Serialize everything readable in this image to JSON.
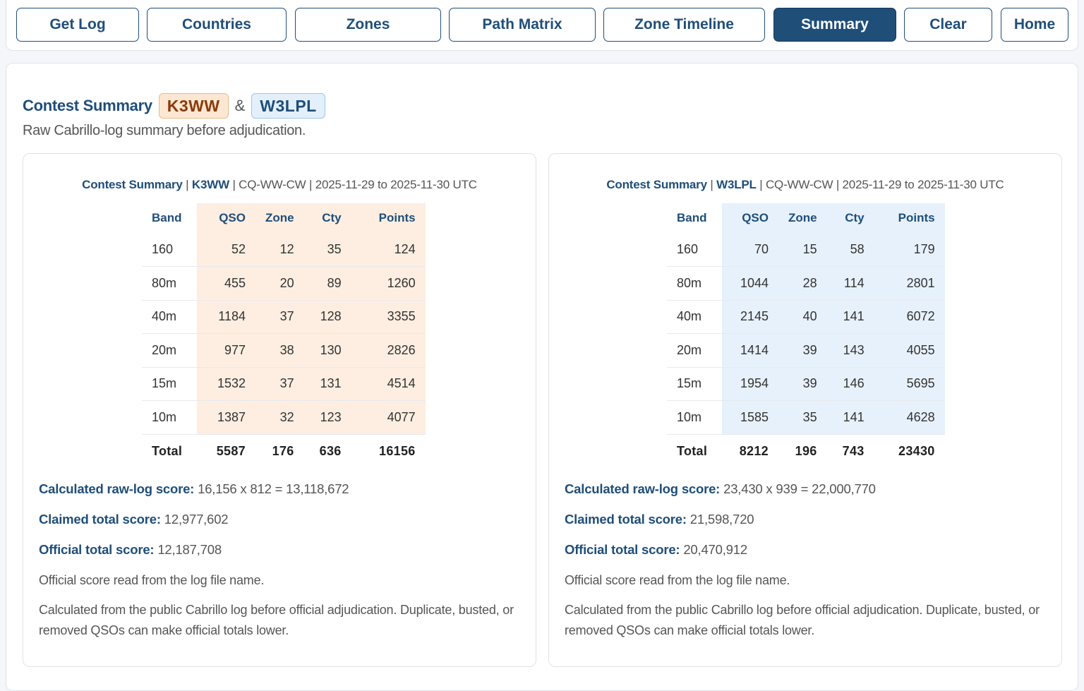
{
  "toolbar": {
    "buttons": [
      "Get Log",
      "Countries",
      "Zones",
      "Path Matrix",
      "Zone Timeline",
      "Summary",
      "Clear",
      "Home"
    ],
    "active": "Summary"
  },
  "header": {
    "title": "Contest Summary",
    "call_a": "K3WW",
    "amp": "&",
    "call_b": "W3LPL",
    "subtitle": "Raw Cabrillo-log summary before adjudication."
  },
  "colors": {
    "accent": "#1f4e79",
    "call_a_bg": "#fde7d3",
    "call_b_bg": "#e3f0fc"
  },
  "columns": [
    "Band",
    "QSO",
    "Zone",
    "Cty",
    "Points"
  ],
  "panels": [
    {
      "head_label": "Contest Summary",
      "call": "K3WW",
      "head_rest": " | CQ-WW-CW | 2025-11-29 to 2025-11-30 UTC",
      "rows": [
        [
          "160",
          "52",
          "12",
          "35",
          "124"
        ],
        [
          "80m",
          "455",
          "20",
          "89",
          "1260"
        ],
        [
          "40m",
          "1184",
          "37",
          "128",
          "3355"
        ],
        [
          "20m",
          "977",
          "38",
          "130",
          "2826"
        ],
        [
          "15m",
          "1532",
          "37",
          "131",
          "4514"
        ],
        [
          "10m",
          "1387",
          "32",
          "123",
          "4077"
        ]
      ],
      "total": [
        "Total",
        "5587",
        "176",
        "636",
        "16156"
      ],
      "calc_label": "Calculated raw-log score:",
      "calc_value": "16,156 x 812 = 13,118,672",
      "claimed_label": "Claimed total score:",
      "claimed_value": "12,977,602",
      "official_label": "Official total score:",
      "official_value": "12,187,708",
      "note1": "Official score read from the log file name.",
      "note2": "Calculated from the public Cabrillo log before official adjudication. Duplicate, busted, or removed QSOs can make official totals lower."
    },
    {
      "head_label": "Contest Summary",
      "call": "W3LPL",
      "head_rest": " | CQ-WW-CW | 2025-11-29 to 2025-11-30 UTC",
      "rows": [
        [
          "160",
          "70",
          "15",
          "58",
          "179"
        ],
        [
          "80m",
          "1044",
          "28",
          "114",
          "2801"
        ],
        [
          "40m",
          "2145",
          "40",
          "141",
          "6072"
        ],
        [
          "20m",
          "1414",
          "39",
          "143",
          "4055"
        ],
        [
          "15m",
          "1954",
          "39",
          "146",
          "5695"
        ],
        [
          "10m",
          "1585",
          "35",
          "141",
          "4628"
        ]
      ],
      "total": [
        "Total",
        "8212",
        "196",
        "743",
        "23430"
      ],
      "calc_label": "Calculated raw-log score:",
      "calc_value": "23,430 x 939 = 22,000,770",
      "claimed_label": "Claimed total score:",
      "claimed_value": "21,598,720",
      "official_label": "Official total score:",
      "official_value": "20,470,912",
      "note1": "Official score read from the log file name.",
      "note2": "Calculated from the public Cabrillo log before official adjudication. Duplicate, busted, or removed QSOs can make official totals lower."
    }
  ]
}
